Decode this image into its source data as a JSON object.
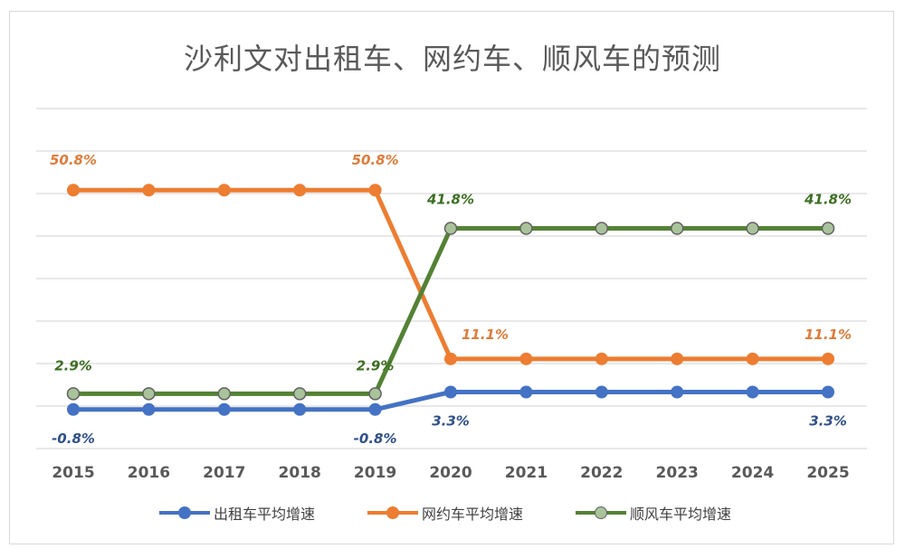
{
  "chart_data": {
    "type": "line",
    "title": "沙利文对出租车、网约车、顺风车的预测",
    "categories": [
      "2015",
      "2016",
      "2017",
      "2018",
      "2019",
      "2020",
      "2021",
      "2022",
      "2023",
      "2024",
      "2025"
    ],
    "xlabel": "",
    "ylabel": "",
    "ylim": [
      -10,
      70
    ],
    "grid": true,
    "legend_position": "bottom",
    "series": [
      {
        "name": "出租车平均增速",
        "color": "#4472c4",
        "values": [
          -0.8,
          -0.8,
          -0.8,
          -0.8,
          -0.8,
          3.3,
          3.3,
          3.3,
          3.3,
          3.3,
          3.3
        ],
        "labels": [
          {
            "index": 0,
            "text": "-0.8%"
          },
          {
            "index": 4,
            "text": "-0.8%"
          },
          {
            "index": 5,
            "text": "3.3%"
          },
          {
            "index": 10,
            "text": "3.3%"
          }
        ]
      },
      {
        "name": "网约车平均增速",
        "color": "#ed7d31",
        "values": [
          50.8,
          50.8,
          50.8,
          50.8,
          50.8,
          11.1,
          11.1,
          11.1,
          11.1,
          11.1,
          11.1
        ],
        "labels": [
          {
            "index": 0,
            "text": "50.8%"
          },
          {
            "index": 4,
            "text": "50.8%"
          },
          {
            "index": 5,
            "text": "11.1%"
          },
          {
            "index": 10,
            "text": "11.1%"
          }
        ]
      },
      {
        "name": "顺风车平均增速",
        "color": "#548235",
        "marker_fill": "#a9c39a",
        "marker_edge": "#616161",
        "values": [
          2.9,
          2.9,
          2.9,
          2.9,
          2.9,
          41.8,
          41.8,
          41.8,
          41.8,
          41.8,
          41.8
        ],
        "labels": [
          {
            "index": 0,
            "text": "2.9%"
          },
          {
            "index": 4,
            "text": "2.9%"
          },
          {
            "index": 5,
            "text": "41.8%"
          },
          {
            "index": 10,
            "text": "41.8%"
          }
        ]
      }
    ]
  }
}
